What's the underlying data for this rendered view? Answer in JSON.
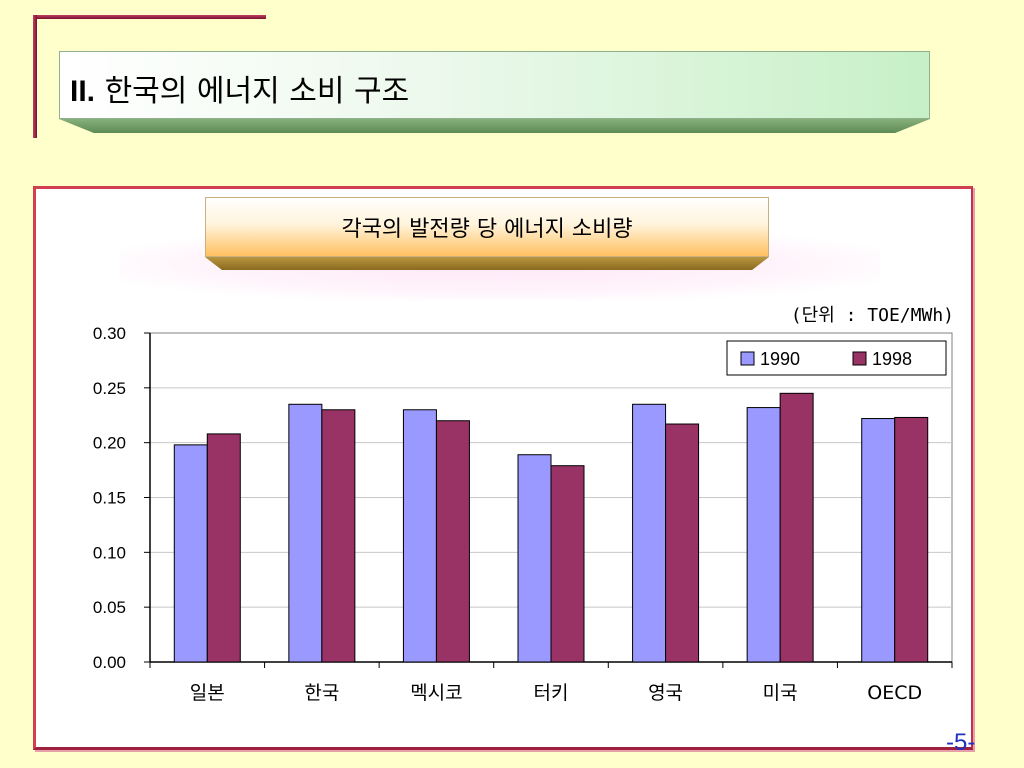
{
  "header": {
    "title_numeral": "II.",
    "title_text": "한국의 에너지 소비 구조"
  },
  "chart_data": {
    "type": "bar",
    "title": "각국의 발전량 당 에너지 소비량",
    "unit_label": "(단위 : TOE/MWh)",
    "categories": [
      "일본",
      "한국",
      "멕시코",
      "터키",
      "영국",
      "미국",
      "OECD"
    ],
    "series": [
      {
        "name": "1990",
        "color": "#9999ff",
        "values": [
          0.198,
          0.235,
          0.23,
          0.189,
          0.235,
          0.232,
          0.222
        ]
      },
      {
        "name": "1998",
        "color": "#993366",
        "values": [
          0.208,
          0.23,
          0.22,
          0.179,
          0.217,
          0.245,
          0.223
        ]
      }
    ],
    "ylim": [
      0,
      0.3
    ],
    "yticks": [
      "0.00",
      "0.05",
      "0.10",
      "0.15",
      "0.20",
      "0.25",
      "0.30"
    ],
    "grid": true,
    "legend_position": "top-right"
  },
  "footer": {
    "page_number": "-5-"
  }
}
